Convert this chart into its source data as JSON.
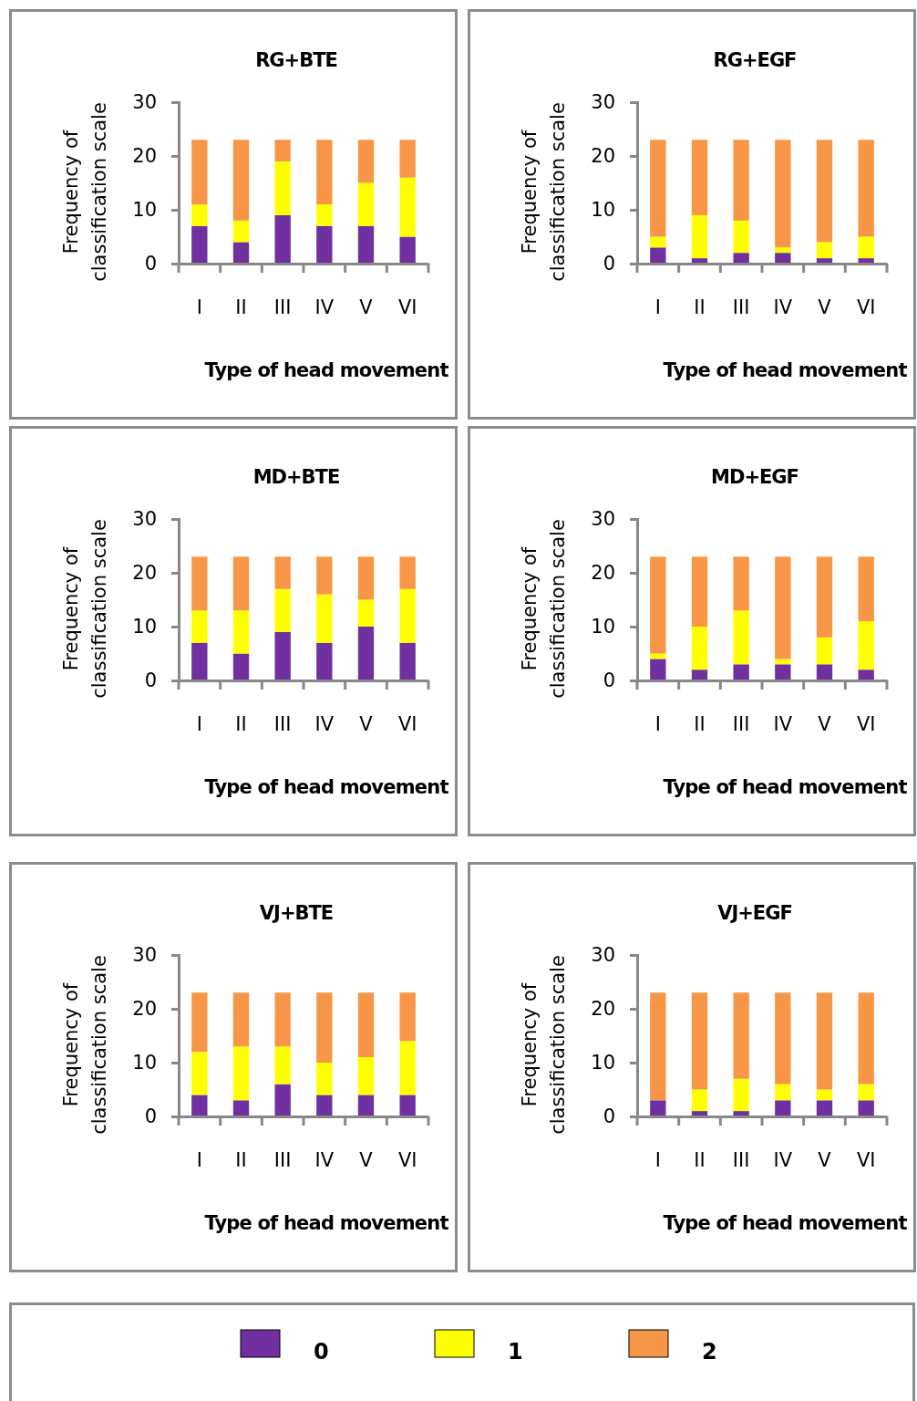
{
  "chart_data": [
    {
      "type": "bar",
      "stacked": true,
      "title": "RG+BTE",
      "xlabel": "Type of head movement",
      "ylabel": "Frequency of\nclassification scale",
      "categories": [
        "I",
        "II",
        "III",
        "IV",
        "V",
        "VI"
      ],
      "ylim": [
        0,
        30
      ],
      "yticks": [
        0,
        10,
        20,
        30
      ],
      "legend": "bottom",
      "series": [
        {
          "name": "0",
          "color": "#7030a0",
          "values": [
            7,
            4,
            9,
            7,
            7,
            5
          ]
        },
        {
          "name": "1",
          "color": "#ffff00",
          "values": [
            4,
            4,
            10,
            4,
            8,
            11
          ]
        },
        {
          "name": "2",
          "color": "#f79646",
          "values": [
            12,
            15,
            4,
            12,
            8,
            7
          ]
        }
      ]
    },
    {
      "type": "bar",
      "stacked": true,
      "title": "RG+EGF",
      "xlabel": "Type of head movement",
      "ylabel": "Frequency of\nclassification scale",
      "categories": [
        "I",
        "II",
        "III",
        "IV",
        "V",
        "VI"
      ],
      "ylim": [
        0,
        30
      ],
      "yticks": [
        0,
        10,
        20,
        30
      ],
      "series": [
        {
          "color": "#7030a0",
          "values": [
            3,
            1,
            2,
            2,
            1,
            1
          ]
        },
        {
          "color": "#ffff00",
          "values": [
            2,
            8,
            6,
            1,
            3,
            4
          ]
        },
        {
          "color": "#f79646",
          "values": [
            18,
            14,
            15,
            20,
            19,
            18
          ]
        }
      ]
    },
    {
      "type": "bar",
      "stacked": true,
      "title": "MD+BTE",
      "xlabel": "Type of head movement",
      "ylabel": "Frequency of\nclassification scale",
      "categories": [
        "I",
        "II",
        "III",
        "IV",
        "V",
        "VI"
      ],
      "ylim": [
        0,
        30
      ],
      "yticks": [
        0,
        10,
        20,
        30
      ],
      "series": [
        {
          "color": "#7030a0",
          "values": [
            7,
            5,
            9,
            7,
            10,
            7
          ]
        },
        {
          "color": "#ffff00",
          "values": [
            6,
            8,
            8,
            9,
            5,
            10
          ]
        },
        {
          "color": "#f79646",
          "values": [
            10,
            10,
            6,
            7,
            8,
            6
          ]
        }
      ]
    },
    {
      "type": "bar",
      "stacked": true,
      "title": "MD+EGF",
      "xlabel": "Type of head movement",
      "ylabel": "Frequency of\nclassification scale",
      "categories": [
        "I",
        "II",
        "III",
        "IV",
        "V",
        "VI"
      ],
      "ylim": [
        0,
        30
      ],
      "yticks": [
        0,
        10,
        20,
        30
      ],
      "series": [
        {
          "color": "#7030a0",
          "values": [
            4,
            2,
            3,
            3,
            3,
            2
          ]
        },
        {
          "color": "#ffff00",
          "values": [
            1,
            8,
            10,
            1,
            5,
            9
          ]
        },
        {
          "color": "#f79646",
          "values": [
            18,
            13,
            10,
            19,
            15,
            12
          ]
        }
      ]
    },
    {
      "type": "bar",
      "stacked": true,
      "title": "VJ+BTE",
      "xlabel": "Type of head movement",
      "ylabel": "Frequency of\nclassification scale",
      "categories": [
        "I",
        "II",
        "III",
        "IV",
        "V",
        "VI"
      ],
      "ylim": [
        0,
        30
      ],
      "yticks": [
        0,
        10,
        20,
        30
      ],
      "series": [
        {
          "color": "#7030a0",
          "values": [
            4,
            3,
            6,
            4,
            4,
            4
          ]
        },
        {
          "color": "#ffff00",
          "values": [
            8,
            10,
            7,
            6,
            7,
            10
          ]
        },
        {
          "color": "#f79646",
          "values": [
            11,
            10,
            10,
            13,
            12,
            9
          ]
        }
      ]
    },
    {
      "type": "bar",
      "stacked": true,
      "title": "VJ+EGF",
      "xlabel": "Type of head movement",
      "ylabel": "Frequency of\nclassification scale",
      "categories": [
        "I",
        "II",
        "III",
        "IV",
        "V",
        "VI"
      ],
      "ylim": [
        0,
        30
      ],
      "yticks": [
        0,
        10,
        20,
        30
      ],
      "series": [
        {
          "color": "#7030a0",
          "values": [
            3,
            1,
            1,
            3,
            3,
            3
          ]
        },
        {
          "color": "#ffff00",
          "values": [
            0,
            4,
            6,
            3,
            2,
            3
          ]
        },
        {
          "color": "#f79646",
          "values": [
            20,
            18,
            16,
            17,
            18,
            17
          ]
        }
      ]
    }
  ]
}
